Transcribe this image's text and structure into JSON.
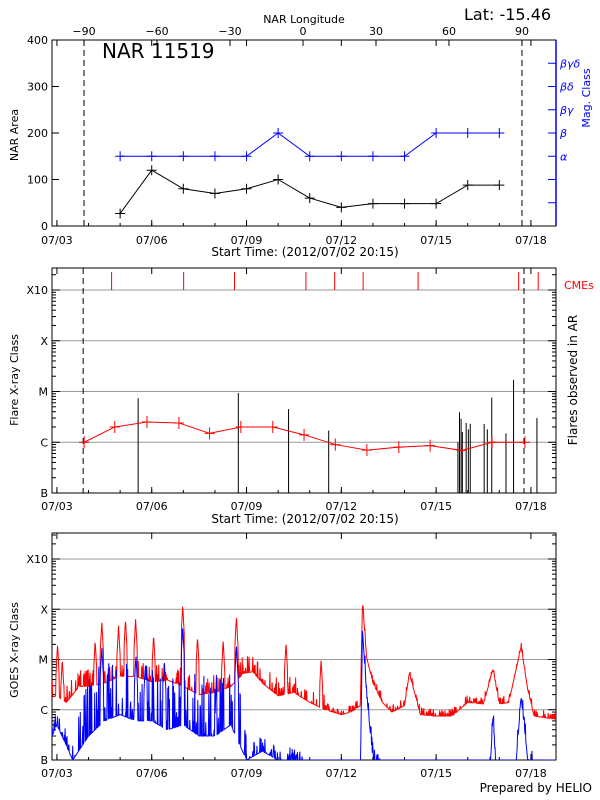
{
  "lat_label": "Lat: -15.46",
  "footer": "Prepared by HELIO",
  "colors": {
    "axis": "#000000",
    "mag_class": "#0000ff",
    "flare_curve": "#ff0000",
    "cme": "#ff0000",
    "grid": "#999999",
    "goes_long": "#ff0000",
    "goes_short": "#0000ff"
  },
  "chart_data": [
    {
      "type": "line",
      "panel": "area",
      "title": "NAR 11519",
      "top_axis_label": "NAR Longitude",
      "top_ticks": [
        -90,
        -60,
        -30,
        0,
        30,
        60,
        90
      ],
      "limb_longitudes": [
        -90,
        90
      ],
      "xlabel": "Start Time: (2012/07/02 20:15)",
      "x_ticks": [
        "07/03",
        "07/06",
        "07/09",
        "07/12",
        "07/15",
        "07/18"
      ],
      "xlim_days_of_july": [
        2.84,
        18.79
      ],
      "ylabel": "NAR Area",
      "ylim": [
        0,
        400
      ],
      "y_ticks": [
        0,
        100,
        200,
        300,
        400
      ],
      "y2label": "Mag. Class",
      "y2_ticks": [
        "",
        "",
        "α",
        "β",
        "βγ",
        "βδ",
        "βγδ"
      ],
      "series": [
        {
          "key": "area",
          "x": [
            5,
            6,
            7,
            8,
            9,
            10,
            11,
            12,
            13,
            14,
            15,
            16,
            17
          ],
          "values": [
            27,
            120,
            80,
            70,
            80,
            100,
            60,
            40,
            48,
            48,
            48,
            88,
            88
          ]
        },
        {
          "key": "mag_class",
          "x": [
            5,
            6,
            7,
            8,
            9,
            10,
            11,
            12,
            13,
            14,
            15,
            16,
            17
          ],
          "values": [
            "α",
            "α",
            "α",
            "α",
            "α",
            "β",
            "α",
            "α",
            "α",
            "α",
            "β",
            "β",
            "β"
          ]
        }
      ]
    },
    {
      "type": "line",
      "panel": "flares",
      "xlabel": "Start Time: (2012/07/02 20:15)",
      "x_ticks": [
        "07/03",
        "07/06",
        "07/09",
        "07/12",
        "07/15",
        "07/18"
      ],
      "ylabel": "Flare X-ray Class",
      "y_ticks": [
        "B",
        "C",
        "M",
        "X",
        "X10"
      ],
      "y2label": "Flares observed in AR",
      "cme_label": "CMEs",
      "limb_days": [
        3.83,
        17.78
      ],
      "mean_curve": {
        "x": [
          3.86,
          4.83,
          5.85,
          6.86,
          7.83,
          8.82,
          9.83,
          10.82,
          11.81,
          12.81,
          13.82,
          14.81,
          15.81,
          16.77,
          17.81
        ],
        "values": [
          "C1.0",
          "C2.0",
          "C2.5",
          "C2.4",
          "C1.5",
          "C2.0",
          "C2.0",
          "C1.4",
          "B9.0",
          "B7.0",
          "B8.0",
          "B8.6",
          "B6.9",
          "C1.0",
          "C1.0"
        ]
      },
      "flares": {
        "x": [
          5.57,
          8.74,
          10.33,
          11.6,
          15.69,
          15.74,
          15.79,
          15.83,
          15.95,
          16.02,
          16.08,
          16.52,
          16.62,
          16.76,
          17.21,
          17.45,
          18.19
        ],
        "values": [
          "C7.4",
          "C9.3",
          "C4.5",
          "C1.7",
          "C1.0",
          "C3.9",
          "C2.9",
          "C1.6",
          "C2.4",
          "C1.8",
          "C2.3",
          "C2.3",
          "C1.8",
          "C7.6",
          "C1.5",
          "M1.7",
          "C3.0"
        ]
      },
      "cmes": [
        4.73,
        7.01,
        8.62,
        10.88,
        11.79,
        12.69,
        14.43,
        17.61,
        18.23
      ]
    },
    {
      "type": "line",
      "panel": "goes",
      "x_ticks": [
        "07/03",
        "07/06",
        "07/09",
        "07/12",
        "07/15",
        "07/18"
      ],
      "ylabel": "GOES X-ray Class",
      "y_ticks": [
        "B",
        "C",
        "M",
        "X",
        "X10"
      ],
      "series": [
        {
          "key": "long",
          "x": [
            2.85,
            3.0,
            3.3,
            3.7,
            4.0,
            4.5,
            5.0,
            5.5,
            6.0,
            6.5,
            7.0,
            7.5,
            8.0,
            8.5,
            8.9,
            9.2,
            9.5,
            10.0,
            10.5,
            11.0,
            11.5,
            12.0,
            12.3,
            12.6,
            12.67,
            12.8,
            13.0,
            13.3,
            13.6,
            14.0,
            14.15,
            14.5,
            15.0,
            15.5,
            16.0,
            16.5,
            16.8,
            17.0,
            17.3,
            17.69,
            17.9,
            18.1,
            18.79
          ],
          "values": [
            "C1.8",
            "C1.9",
            "C1.4",
            "C2.9",
            "C2.9",
            "C3.4",
            "C4.6",
            "C4.6",
            "C3.6",
            "C3.9",
            "C2.9",
            "C2.0",
            "C2.2",
            "C2.9",
            "C5.3",
            "C5.7",
            "C3.4",
            "C1.9",
            "C2.2",
            "C1.4",
            "C1.0",
            "B8.0",
            "B9.0",
            "C1.2",
            "X1.4",
            "M1.1",
            "C3.4",
            "C1.4",
            "B9.0",
            "C1.2",
            "C5.3",
            "B8.0",
            "B7.5",
            "B7.5",
            "C1.4",
            "C1.3",
            "C6.4",
            "C1.3",
            "C1.4",
            "M1.8",
            "C2.5",
            "B7.5",
            "B6.5"
          ],
          "spikes": {
            "x": [
              3.02,
              3.17,
              4.21,
              4.42,
              4.95,
              5.17,
              5.49,
              6.06,
              6.98,
              7.45,
              8.26,
              8.68,
              10.25,
              11.36
            ],
            "values": [
              "M2.0",
              "M1.0",
              "M2.4",
              "M5.7",
              "M4.7",
              "M6.3",
              "M6.3",
              "M3.1",
              "X1.2",
              "M2.8",
              "M2.4",
              "M7.1",
              "M2.2",
              "M1.0"
            ]
          }
        },
        {
          "key": "short",
          "x": [
            2.85,
            3.0,
            3.5,
            4.0,
            4.5,
            5.0,
            5.5,
            6.0,
            6.5,
            7.0,
            7.5,
            8.0,
            8.5,
            9.0,
            9.5,
            10.0,
            10.5,
            11.0,
            12.0,
            12.6,
            12.67,
            12.8,
            13.0,
            13.3,
            16.7,
            16.8,
            16.9,
            17.5,
            17.69,
            17.9,
            18.3,
            18.79
          ],
          "values": [
            "B3.0",
            "B5.0",
            "B1.0",
            "B3.0",
            "B6.0",
            "B8.0",
            "B6.0",
            "B6.0",
            "B4.0",
            "B5.0",
            "B3.0",
            "B3.0",
            "B5.0",
            "B1.0",
            "B1.5",
            "B1.0",
            "B1.0",
            "B0.5",
            "B0.5",
            "B0.5",
            "M3.9",
            "C2.0",
            "B1.0",
            "B0.5",
            "B0.5",
            "B7.5",
            "B0.5",
            "B0.5",
            "C1.8",
            "B1.0",
            "B0.5",
            "B0.5"
          ],
          "spikes": {
            "x": [
              4.42,
              6.98,
              8.68,
              5.5,
              5.8,
              6.4
            ],
            "values": [
              "M1.8",
              "M4.4",
              "M1.9",
              "M1.2",
              "C8.0",
              "C9.0"
            ]
          }
        }
      ]
    }
  ]
}
